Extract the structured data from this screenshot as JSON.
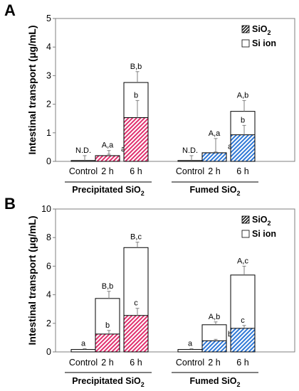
{
  "colors": {
    "precipitated": "#e0306e",
    "fumed": "#2f78d6"
  },
  "ylabel": "Intestinal transport (μg/mL)",
  "legend": {
    "sio2": "SiO",
    "sio2_sub": "2",
    "si_ion": "Si ion"
  },
  "chart_data": [
    {
      "panel": "A",
      "type": "bar",
      "stacked": true,
      "ylabel": "Intestinal transport (μg/mL)",
      "ylim": [
        0,
        5
      ],
      "yticks": [
        0,
        1,
        2,
        3,
        4,
        5
      ],
      "legend_position": "top-right",
      "groups": [
        {
          "label": "Precipitated SiO",
          "label_sub": "2",
          "bars": [
            {
              "category": "Control",
              "sio2": 0,
              "total": 0.03,
              "err_total": 0.17,
              "top_label": "N.D.",
              "inner_label": ""
            },
            {
              "category": "2 h",
              "sio2": 0.2,
              "total": 0.2,
              "err_total": 0.18,
              "err_sio2": 0.05,
              "top_label": "A,a",
              "inner_label": "a"
            },
            {
              "category": "6 h",
              "sio2": 1.53,
              "total": 2.76,
              "err_total": 0.38,
              "err_sio2": 0.6,
              "top_label": "B,b",
              "inner_label": "b"
            }
          ]
        },
        {
          "label": "Fumed SiO",
          "label_sub": "2",
          "bars": [
            {
              "category": "Control",
              "sio2": 0,
              "total": 0.03,
              "err_total": 0.17,
              "top_label": "N.D.",
              "inner_label": ""
            },
            {
              "category": "2 h",
              "sio2": 0.3,
              "total": 0.3,
              "err_total": 0.5,
              "err_sio2": 0.03,
              "top_label": "A,a",
              "inner_label": "a"
            },
            {
              "category": "6 h",
              "sio2": 0.93,
              "total": 1.75,
              "err_total": 0.38,
              "err_sio2": 0.33,
              "top_label": "A,b",
              "inner_label": "b"
            }
          ]
        }
      ]
    },
    {
      "panel": "B",
      "type": "bar",
      "stacked": true,
      "ylabel": "Intestinal transport (μg/mL)",
      "ylim": [
        0,
        10
      ],
      "yticks": [
        0,
        2,
        4,
        6,
        8,
        10
      ],
      "legend_position": "top-right",
      "groups": [
        {
          "label": "Precipitated SiO",
          "label_sub": "2",
          "bars": [
            {
              "category": "Control",
              "sio2": 0,
              "total": 0.17,
              "err_total": 0.05,
              "top_label": "a",
              "inner_label": ""
            },
            {
              "category": "2 h",
              "sio2": 1.25,
              "total": 3.74,
              "err_total": 0.5,
              "err_sio2": 0.25,
              "top_label": "B,b",
              "inner_label": "b"
            },
            {
              "category": "6 h",
              "sio2": 2.55,
              "total": 7.3,
              "err_total": 0.38,
              "err_sio2": 0.5,
              "top_label": "B,c",
              "inner_label": "c"
            }
          ]
        },
        {
          "label": "Fumed SiO",
          "label_sub": "2",
          "bars": [
            {
              "category": "Control",
              "sio2": 0,
              "total": 0.17,
              "err_total": 0.05,
              "top_label": "a",
              "inner_label": ""
            },
            {
              "category": "2 h",
              "sio2": 0.78,
              "total": 1.9,
              "err_total": 0.2,
              "err_sio2": 0.1,
              "top_label": "A,b",
              "inner_label": "b"
            },
            {
              "category": "6 h",
              "sio2": 1.65,
              "total": 5.38,
              "err_total": 0.62,
              "err_sio2": 0.2,
              "top_label": "A,c",
              "inner_label": "c"
            }
          ]
        }
      ]
    }
  ]
}
